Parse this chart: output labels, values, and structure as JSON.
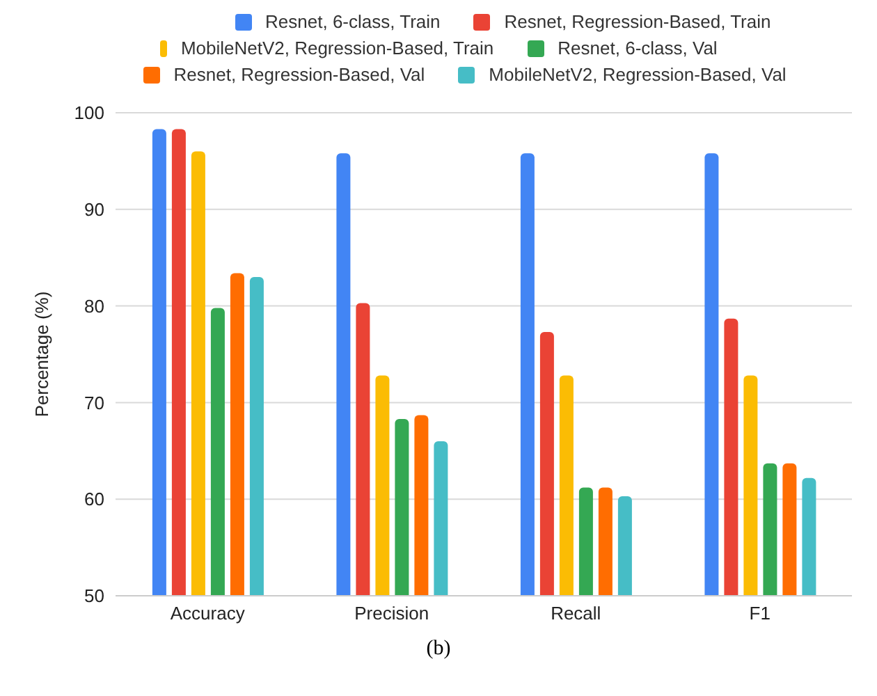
{
  "chart_data": {
    "type": "bar",
    "categories": [
      "Accuracy",
      "Precision",
      "Recall",
      "F1"
    ],
    "ylabel": "Percentage (%)",
    "ylim": [
      50,
      100
    ],
    "yticks": [
      50,
      60,
      70,
      80,
      90,
      100
    ],
    "grid": "y",
    "legend": "top",
    "annotations": [
      "(b)"
    ],
    "series": [
      {
        "name": "Resnet, 6-class, Train",
        "color": "#4285f4",
        "values": [
          98.3,
          95.8,
          95.8,
          95.8
        ]
      },
      {
        "name": "Resnet, Regression-Based, Train",
        "color": "#ea4335",
        "values": [
          98.3,
          80.3,
          77.3,
          78.7
        ]
      },
      {
        "name": "MobileNetV2, Regression-Based, Train",
        "color": "#fbbc04",
        "values": [
          96.0,
          72.8,
          72.8,
          72.8
        ]
      },
      {
        "name": "Resnet, 6-class, Val",
        "color": "#34a853",
        "values": [
          79.8,
          68.3,
          61.2,
          63.7
        ]
      },
      {
        "name": "Resnet, Regression-Based, Val",
        "color": "#ff6d01",
        "values": [
          83.4,
          68.7,
          61.2,
          63.7
        ]
      },
      {
        "name": "MobileNetV2, Regression-Based, Val",
        "color": "#46bdc6",
        "values": [
          83.0,
          66.0,
          60.3,
          62.2
        ]
      }
    ]
  }
}
